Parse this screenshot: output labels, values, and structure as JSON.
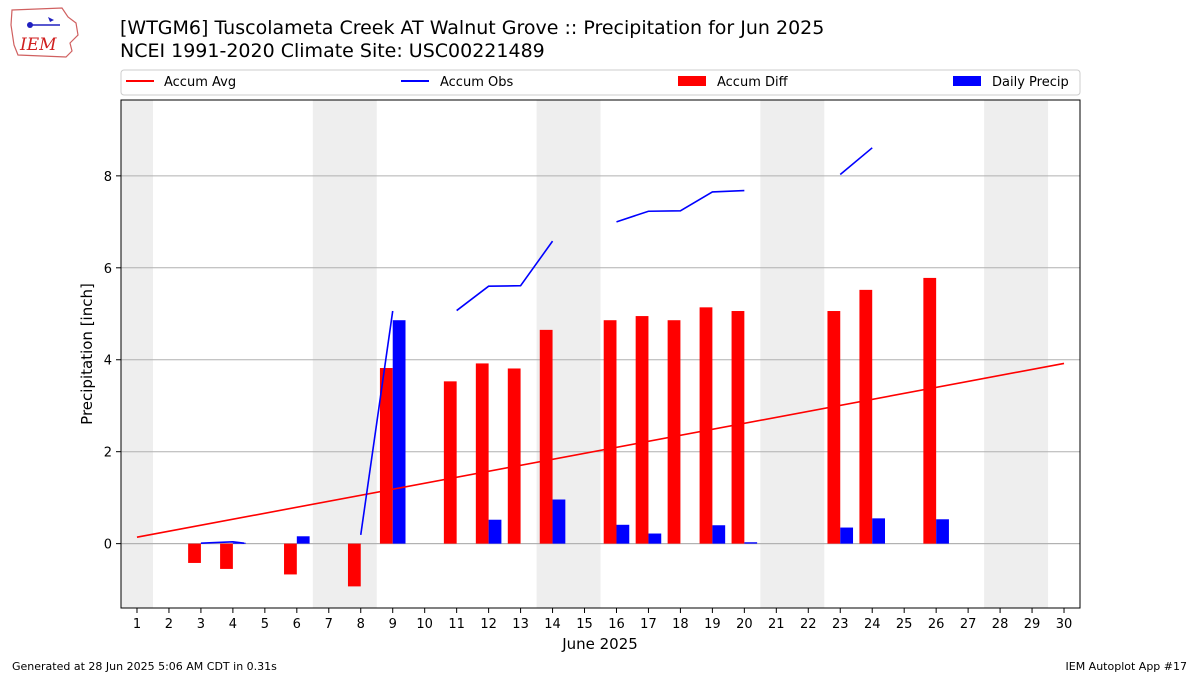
{
  "title_line1": "[WTGM6] Tuscolameta Creek  AT Walnut Grove :: Precipitation for Jun 2025",
  "title_line2": "NCEI 1991-2020 Climate Site: USC00221489",
  "footer_left": "Generated at 28 Jun 2025 5:06 AM CDT in 0.31s",
  "footer_right": "IEM Autoplot App #17",
  "logo_text": "IEM",
  "chart_data": {
    "type": "bar",
    "xlabel": "June 2025",
    "ylabel": "Precipitation [inch]",
    "xlim": [
      0.5,
      30.5
    ],
    "ylim": [
      -1.4,
      9.65
    ],
    "x_ticks": [
      1,
      2,
      3,
      4,
      5,
      6,
      7,
      8,
      9,
      10,
      11,
      12,
      13,
      14,
      15,
      16,
      17,
      18,
      19,
      20,
      21,
      22,
      23,
      24,
      25,
      26,
      27,
      28,
      29,
      30
    ],
    "y_ticks": [
      0,
      2,
      4,
      6,
      8
    ],
    "grid": "y",
    "legend_position": "top",
    "weekend_shading": [
      [
        0.5,
        1.5
      ],
      [
        6.5,
        8.5
      ],
      [
        13.5,
        15.5
      ],
      [
        20.5,
        22.5
      ],
      [
        27.5,
        29.5
      ]
    ],
    "colors": {
      "accum_avg": "#ff0000",
      "accum_obs": "#0000ff",
      "accum_diff": "#ff0000",
      "daily_precip": "#0000ff",
      "shade": "#eeeeee",
      "grid": "#b0b0b0"
    },
    "legend": [
      "Accum Avg",
      "Accum Obs",
      "Accum Diff",
      "Daily Precip"
    ],
    "accum_avg": {
      "x": [
        1,
        30
      ],
      "y": [
        0.14,
        3.92
      ]
    },
    "accum_obs_segments": [
      [
        [
          3,
          0.01
        ],
        [
          4,
          0.04
        ],
        [
          4.35,
          0.01
        ]
      ],
      [
        [
          6,
          0.16
        ]
      ],
      [
        [
          8,
          0.19
        ],
        [
          9,
          5.06
        ]
      ],
      [
        [
          11,
          5.07
        ],
        [
          12,
          5.6
        ],
        [
          13,
          5.61
        ],
        [
          14,
          6.58
        ]
      ],
      [
        [
          16,
          7.0
        ],
        [
          17,
          7.23
        ],
        [
          18,
          7.24
        ],
        [
          19,
          7.65
        ],
        [
          20,
          7.68
        ]
      ],
      [
        [
          23,
          8.03
        ],
        [
          24,
          8.61
        ]
      ]
    ],
    "accum_diff": [
      {
        "x": 3,
        "y": -0.42
      },
      {
        "x": 4,
        "y": -0.55
      },
      {
        "x": 6,
        "y": -0.67
      },
      {
        "x": 8,
        "y": -0.93
      },
      {
        "x": 9,
        "y": 3.82
      },
      {
        "x": 11,
        "y": 3.53
      },
      {
        "x": 12,
        "y": 3.92
      },
      {
        "x": 13,
        "y": 3.81
      },
      {
        "x": 14,
        "y": 4.65
      },
      {
        "x": 16,
        "y": 4.86
      },
      {
        "x": 17,
        "y": 4.95
      },
      {
        "x": 18,
        "y": 4.86
      },
      {
        "x": 19,
        "y": 5.14
      },
      {
        "x": 20,
        "y": 5.06
      },
      {
        "x": 23,
        "y": 5.06
      },
      {
        "x": 24,
        "y": 5.52
      },
      {
        "x": 26,
        "y": 5.78
      }
    ],
    "daily_precip": [
      {
        "x": 4,
        "y": 0.02
      },
      {
        "x": 6,
        "y": 0.16
      },
      {
        "x": 9,
        "y": 4.86
      },
      {
        "x": 12,
        "y": 0.52
      },
      {
        "x": 14,
        "y": 0.96
      },
      {
        "x": 16,
        "y": 0.41
      },
      {
        "x": 17,
        "y": 0.22
      },
      {
        "x": 19,
        "y": 0.4
      },
      {
        "x": 20,
        "y": 0.03
      },
      {
        "x": 23,
        "y": 0.35
      },
      {
        "x": 24,
        "y": 0.55
      },
      {
        "x": 26,
        "y": 0.53
      }
    ]
  }
}
